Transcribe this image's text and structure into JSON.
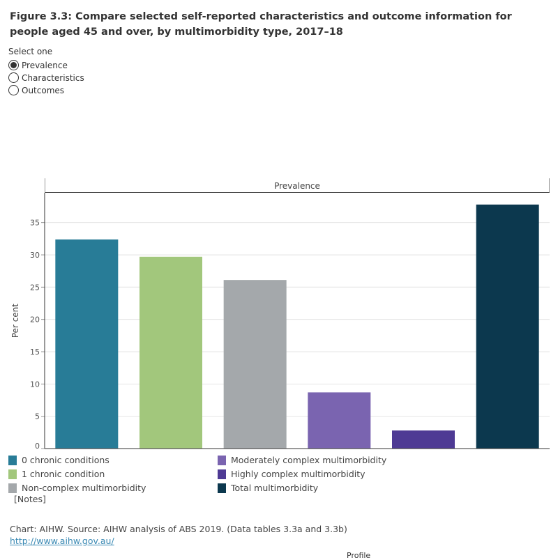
{
  "title": "Figure 3.3: Compare  selected self-reported characteristics and outcome information for people aged 45 and over, by multimorbidity type, 2017–18",
  "selector": {
    "label": "Select one",
    "options": [
      "Prevalence",
      "Characteristics",
      "Outcomes"
    ],
    "selected": "Prevalence"
  },
  "chart_data": {
    "type": "bar",
    "panel_title": "Prevalence",
    "categories": [
      "0 chronic conditions",
      "1 chronic condition",
      "Non-complex multimorbidity",
      "Moderately complex multimorbidity",
      "Highly complex multimorbidity",
      "Total multimorbidity"
    ],
    "values": [
      32.4,
      29.7,
      26.1,
      8.7,
      2.8,
      37.8
    ],
    "colors": [
      "#287c97",
      "#a2c77c",
      "#a4a8ab",
      "#7a64b0",
      "#4e3a94",
      "#0c384e"
    ],
    "ylabel": "Per cent",
    "ylim": [
      0,
      39.6
    ],
    "yticks": [
      0,
      5,
      10,
      15,
      20,
      25,
      30,
      35
    ],
    "grid": true,
    "legend_position": "bottom"
  },
  "notes_label": "[Notes]",
  "source": "Chart: AIHW. Source: AIHW analysis of ABS 2019. (Data tables 3.3a and 3.3b)",
  "link": "http://www.aihw.gov.au/",
  "profile_label": "Profile"
}
